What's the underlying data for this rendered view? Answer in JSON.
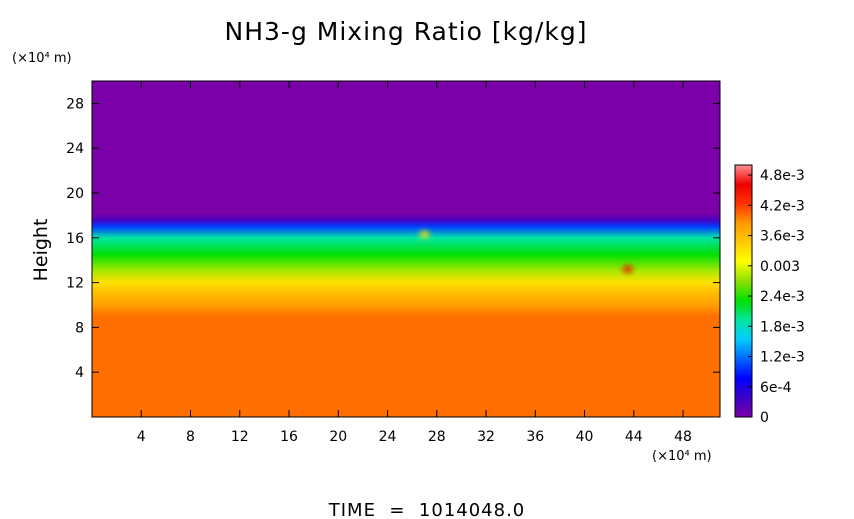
{
  "chart_data": {
    "type": "heatmap",
    "title": "NH3-g Mixing Ratio [kg/kg]",
    "ylabel": "Height",
    "x_unit_label": "(×10⁴ m)",
    "y_unit_label": "(×10⁴ m)",
    "footer": "TIME  =  1014048.0",
    "xlim": [
      0,
      51
    ],
    "ylim": [
      0,
      30
    ],
    "x_ticks": [
      4,
      8,
      12,
      16,
      20,
      24,
      28,
      32,
      36,
      40,
      44,
      48
    ],
    "y_ticks": [
      4,
      8,
      12,
      16,
      20,
      24,
      28
    ],
    "colorbar": {
      "range": [
        0,
        0.005
      ],
      "tick_values": [
        0,
        0.0006,
        0.0012,
        0.0018,
        0.0024,
        0.003,
        0.0036,
        0.0042,
        0.0048
      ],
      "tick_labels": [
        "0",
        "6e-4",
        "1.2e-3",
        "1.8e-3",
        "2.4e-3",
        "0.003",
        "3.6e-3",
        "4.2e-3",
        "4.8e-3"
      ],
      "colors": [
        "#7a00a8",
        "#3d00c8",
        "#0000ff",
        "#0066ff",
        "#00ccff",
        "#00e5a0",
        "#00e000",
        "#8ce000",
        "#ffff00",
        "#ffcc00",
        "#ff9900",
        "#ff3300",
        "#ee0000",
        "#ff9090"
      ]
    },
    "vertical_profile": [
      {
        "height": 0,
        "value": 0.004
      },
      {
        "height": 9,
        "value": 0.004
      },
      {
        "height": 10,
        "value": 0.0038
      },
      {
        "height": 11,
        "value": 0.0036
      },
      {
        "height": 12,
        "value": 0.0033
      },
      {
        "height": 13,
        "value": 0.0028
      },
      {
        "height": 14.5,
        "value": 0.0023
      },
      {
        "height": 16,
        "value": 0.0019
      },
      {
        "height": 17,
        "value": 0.001
      },
      {
        "height": 17.6,
        "value": 0.0003
      },
      {
        "height": 18.2,
        "value": 0
      },
      {
        "height": 30,
        "value": 0
      }
    ],
    "features": [
      {
        "name": "local maximum",
        "x": 43.5,
        "y": 13.2,
        "value": 0.0045
      },
      {
        "name": "local maximum",
        "x": 27,
        "y": 16.3,
        "value": 0.0033
      }
    ]
  }
}
